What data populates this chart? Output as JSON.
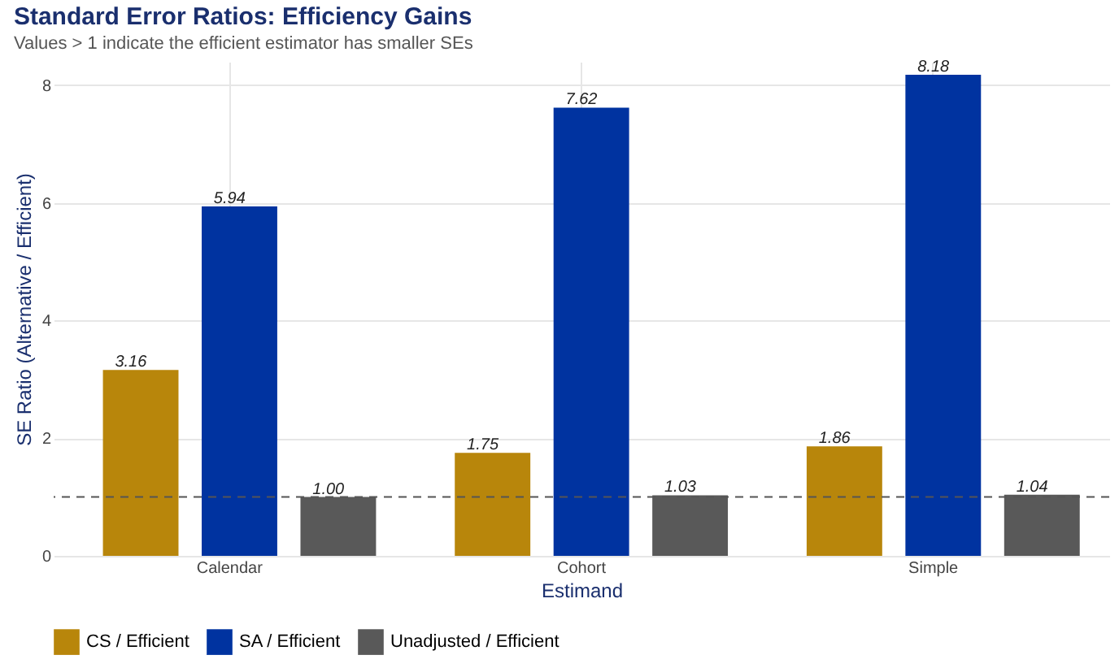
{
  "chart_data": {
    "type": "bar",
    "title": "Standard Error Ratios: Efficiency Gains",
    "subtitle": "Values > 1 indicate the efficient estimator has smaller SEs",
    "xlabel": "Estimand",
    "ylabel": "SE Ratio (Alternative / Efficient)",
    "categories": [
      "Calendar",
      "Cohort",
      "Simple"
    ],
    "series": [
      {
        "name": "CS / Efficient",
        "color": "#b8860b",
        "values": [
          3.16,
          1.75,
          1.86
        ],
        "value_labels": [
          "3.16",
          "1.75",
          "1.86"
        ]
      },
      {
        "name": "SA / Efficient",
        "color": "#0033a0",
        "values": [
          5.94,
          7.62,
          8.18
        ],
        "value_labels": [
          "5.94",
          "7.62",
          "8.18"
        ]
      },
      {
        "name": "Unadjusted / Efficient",
        "color": "#595959",
        "values": [
          1.0,
          1.03,
          1.04
        ],
        "value_labels": [
          "1.00",
          "1.03",
          "1.04"
        ]
      }
    ],
    "ylim": [
      0,
      8.4
    ],
    "yticks": [
      0,
      2,
      4,
      6,
      8
    ],
    "grid": true,
    "legend": "bottom",
    "ref_lines": [
      {
        "axis": "y",
        "value": 1,
        "color": "#555555",
        "line_style": "dashed"
      }
    ]
  }
}
